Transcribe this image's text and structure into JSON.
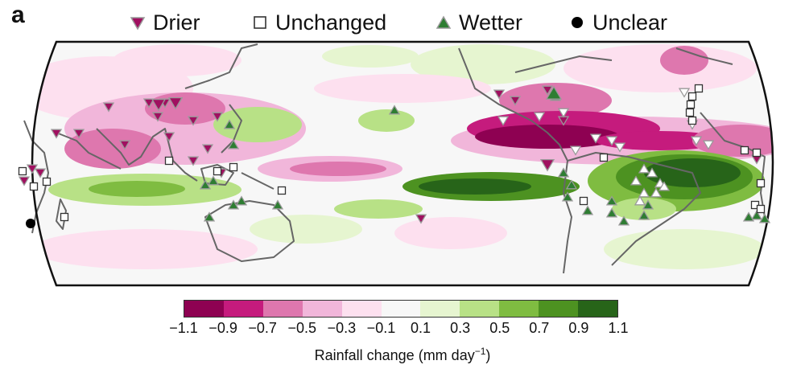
{
  "panel_label": "a",
  "legend": [
    {
      "label": "Drier",
      "icon": "down-triangle-icon",
      "color": "#a01060"
    },
    {
      "label": "Unchanged",
      "icon": "square-icon",
      "color": "#ffffff"
    },
    {
      "label": "Wetter",
      "icon": "up-triangle-icon",
      "color": "#2e7d32"
    },
    {
      "label": "Unclear",
      "icon": "circle-icon",
      "color": "#000000"
    }
  ],
  "colorbar": {
    "colors": [
      "#8e0152",
      "#c51b7d",
      "#de77ae",
      "#f1b6da",
      "#fde0ef",
      "#f7f7f7",
      "#e6f5d0",
      "#b8e186",
      "#7fbc41",
      "#4d9221",
      "#276419"
    ],
    "ticks": [
      "−1.1",
      "−0.9",
      "−0.7",
      "−0.5",
      "−0.3",
      "−0.1",
      "0.1",
      "0.3",
      "0.5",
      "0.7",
      "0.9",
      "1.1"
    ],
    "title_prefix": "Rainfall change (mm day",
    "title_sup": "−1",
    "title_suffix": ")"
  },
  "colors": {
    "drier": "#a01060",
    "wetter": "#2e7d32",
    "coast": "#666666"
  }
}
